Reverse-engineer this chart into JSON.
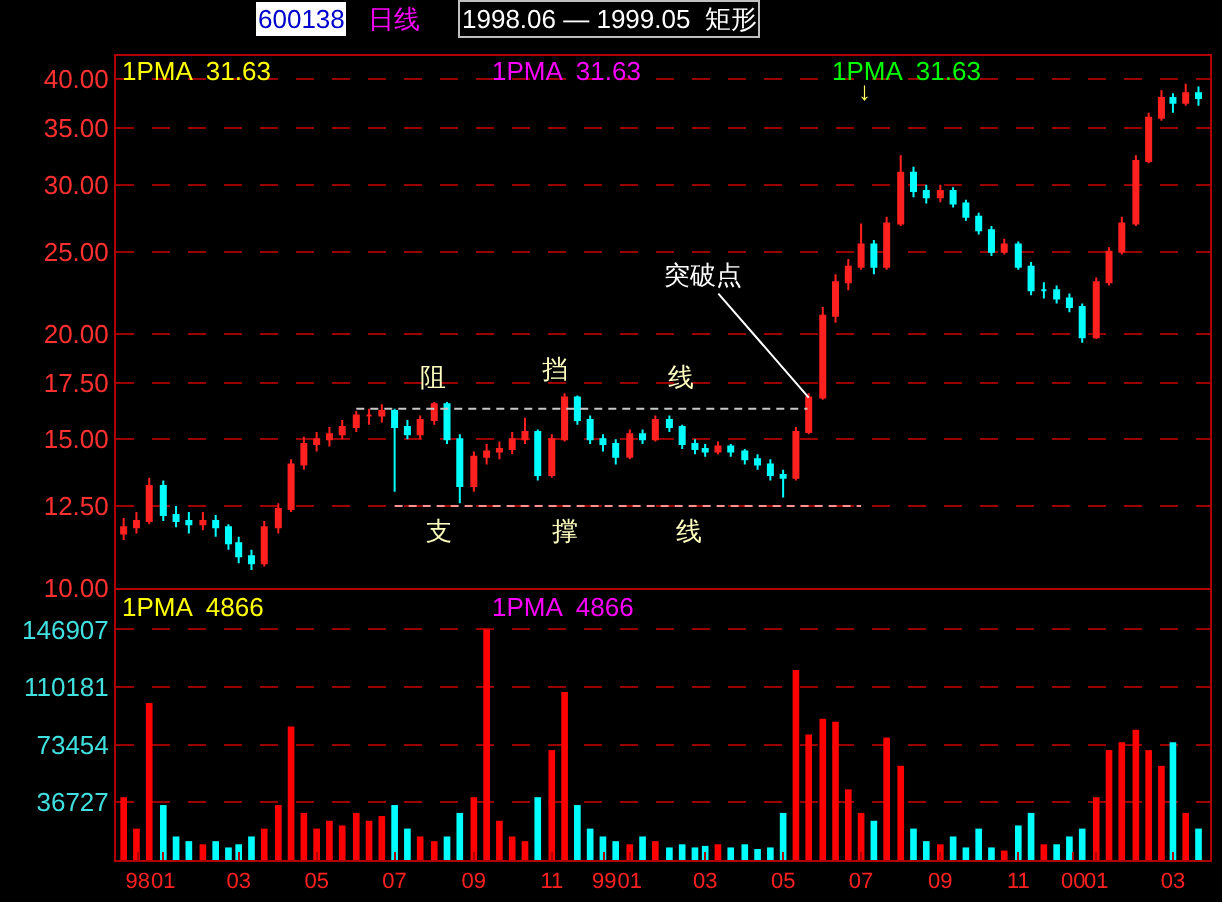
{
  "chart_data": [
    {
      "type": "candlestick",
      "log": true,
      "grid": "y",
      "tick_labels": "y",
      "x": [
        "1997-12-01",
        "1997-12-11",
        "1997-12-21",
        "1998-01-01",
        "1998-01-11",
        "1998-01-21",
        "1998-02-01",
        "1998-02-11",
        "1998-02-21",
        "1998-03-01",
        "1998-03-11",
        "1998-03-21",
        "1998-04-01",
        "1998-04-11",
        "1998-04-21",
        "1998-05-01",
        "1998-05-11",
        "1998-05-21",
        "1998-06-01",
        "1998-06-11",
        "1998-06-21",
        "1998-07-01",
        "1998-07-11",
        "1998-07-21",
        "1998-08-01",
        "1998-08-11",
        "1998-08-21",
        "1998-09-01",
        "1998-09-11",
        "1998-09-21",
        "1998-10-01",
        "1998-10-11",
        "1998-10-21",
        "1998-11-01",
        "1998-11-11",
        "1998-11-21",
        "1998-12-01",
        "1998-12-11",
        "1998-12-21",
        "1999-01-01",
        "1999-01-11",
        "1999-01-21",
        "1999-02-01",
        "1999-02-11",
        "1999-02-21",
        "1999-03-01",
        "1999-03-11",
        "1999-03-21",
        "1999-04-01",
        "1999-04-11",
        "1999-04-21",
        "1999-05-01",
        "1999-05-11",
        "1999-05-21",
        "1999-06-01",
        "1999-06-11",
        "1999-06-21",
        "1999-07-01",
        "1999-07-11",
        "1999-07-21",
        "1999-08-01",
        "1999-08-11",
        "1999-08-21",
        "1999-09-01",
        "1999-09-11",
        "1999-09-21",
        "1999-10-01",
        "1999-10-11",
        "1999-10-21",
        "1999-11-01",
        "1999-11-11",
        "1999-11-21",
        "1999-12-01",
        "1999-12-11",
        "1999-12-21",
        "2000-01-01",
        "2000-01-11",
        "2000-01-21",
        "2000-02-01",
        "2000-02-11",
        "2000-02-21",
        "2000-03-01",
        "2000-03-11",
        "2000-03-21"
      ],
      "ohlc": [
        [
          11.6,
          12.1,
          11.4,
          11.8
        ],
        [
          11.8,
          12.3,
          11.6,
          12.0
        ],
        [
          12.0,
          13.5,
          11.9,
          13.2
        ],
        [
          13.2,
          13.4,
          12.0,
          12.2
        ],
        [
          12.2,
          12.5,
          11.8,
          12.0
        ],
        [
          12.0,
          12.3,
          11.6,
          11.9
        ],
        [
          11.9,
          12.3,
          11.7,
          12.0
        ],
        [
          12.0,
          12.2,
          11.5,
          11.8
        ],
        [
          11.8,
          11.9,
          11.1,
          11.3
        ],
        [
          11.3,
          11.5,
          10.7,
          10.9
        ],
        [
          10.9,
          11.1,
          10.5,
          10.7
        ],
        [
          10.7,
          12.0,
          10.6,
          11.8
        ],
        [
          11.8,
          12.6,
          11.6,
          12.4
        ],
        [
          12.4,
          14.2,
          12.3,
          14.0
        ],
        [
          14.0,
          15.1,
          13.8,
          14.8
        ],
        [
          14.8,
          15.3,
          14.5,
          15.0
        ],
        [
          15.0,
          15.5,
          14.7,
          15.2
        ],
        [
          15.2,
          15.8,
          15.0,
          15.5
        ],
        [
          15.5,
          16.2,
          15.3,
          16.0
        ],
        [
          16.0,
          16.3,
          15.6,
          16.0
        ],
        [
          16.0,
          16.5,
          15.7,
          16.2
        ],
        [
          16.2,
          16.3,
          13.0,
          15.5
        ],
        [
          15.5,
          15.8,
          15.0,
          15.2
        ],
        [
          15.2,
          16.0,
          15.0,
          15.8
        ],
        [
          15.8,
          16.6,
          15.6,
          16.5
        ],
        [
          16.5,
          16.6,
          14.8,
          15.0
        ],
        [
          15.0,
          15.2,
          12.6,
          13.2
        ],
        [
          13.2,
          14.5,
          13.0,
          14.3
        ],
        [
          14.3,
          14.8,
          14.0,
          14.5
        ],
        [
          14.5,
          14.9,
          14.2,
          14.6
        ],
        [
          14.6,
          15.3,
          14.4,
          15.0
        ],
        [
          15.0,
          15.9,
          14.8,
          15.3
        ],
        [
          15.3,
          15.4,
          13.4,
          13.6
        ],
        [
          13.6,
          15.2,
          13.5,
          15.0
        ],
        [
          15.0,
          17.0,
          14.9,
          16.8
        ],
        [
          16.8,
          16.9,
          15.6,
          15.8
        ],
        [
          15.8,
          16.0,
          14.8,
          15.0
        ],
        [
          15.0,
          15.2,
          14.5,
          14.8
        ],
        [
          14.8,
          15.0,
          14.0,
          14.3
        ],
        [
          14.3,
          15.4,
          14.2,
          15.2
        ],
        [
          15.2,
          15.4,
          14.8,
          15.0
        ],
        [
          15.0,
          16.0,
          14.9,
          15.8
        ],
        [
          15.8,
          16.0,
          15.3,
          15.5
        ],
        [
          15.5,
          15.6,
          14.6,
          14.8
        ],
        [
          14.8,
          15.0,
          14.4,
          14.6
        ],
        [
          14.6,
          14.8,
          14.3,
          14.5
        ],
        [
          14.5,
          14.9,
          14.4,
          14.7
        ],
        [
          14.7,
          14.8,
          14.3,
          14.5
        ],
        [
          14.5,
          14.6,
          14.0,
          14.2
        ],
        [
          14.2,
          14.4,
          13.8,
          14.0
        ],
        [
          14.0,
          14.2,
          13.4,
          13.6
        ],
        [
          13.6,
          13.8,
          12.8,
          13.5
        ],
        [
          13.5,
          15.5,
          13.4,
          15.3
        ],
        [
          15.3,
          17.0,
          15.2,
          16.8
        ],
        [
          16.8,
          21.5,
          16.7,
          21.0
        ],
        [
          21.0,
          23.5,
          20.6,
          23.0
        ],
        [
          23.0,
          24.5,
          22.5,
          24.0
        ],
        [
          24.0,
          27.0,
          23.8,
          25.5
        ],
        [
          25.5,
          25.8,
          23.5,
          24.0
        ],
        [
          24.0,
          27.5,
          23.8,
          27.0
        ],
        [
          27.0,
          32.5,
          26.8,
          31.0
        ],
        [
          31.0,
          31.5,
          29.0,
          29.5
        ],
        [
          29.5,
          30.0,
          28.5,
          29.0
        ],
        [
          29.0,
          30.0,
          28.6,
          29.5
        ],
        [
          29.5,
          29.8,
          28.2,
          28.5
        ],
        [
          28.5,
          28.8,
          27.2,
          27.5
        ],
        [
          27.5,
          27.8,
          26.2,
          26.5
        ],
        [
          26.5,
          26.8,
          24.7,
          25.0
        ],
        [
          25.0,
          25.9,
          24.8,
          25.5
        ],
        [
          25.5,
          25.7,
          23.8,
          24.0
        ],
        [
          24.0,
          24.3,
          22.2,
          22.5
        ],
        [
          22.5,
          23.0,
          22.0,
          22.5
        ],
        [
          22.5,
          22.8,
          21.7,
          22.0
        ],
        [
          22.0,
          22.3,
          21.2,
          21.5
        ],
        [
          21.5,
          21.7,
          19.5,
          19.8
        ],
        [
          19.8,
          23.3,
          19.7,
          23.0
        ],
        [
          23.0,
          25.3,
          22.8,
          25.0
        ],
        [
          25.0,
          27.5,
          24.8,
          27.0
        ],
        [
          27.0,
          32.5,
          26.8,
          32.0
        ],
        [
          32.0,
          36.5,
          31.8,
          36.0
        ],
        [
          36.0,
          38.8,
          35.7,
          38.0
        ],
        [
          38.0,
          38.5,
          36.5,
          37.5
        ],
        [
          37.5,
          39.5,
          37.2,
          38.5
        ],
        [
          38.5,
          39.2,
          37.2,
          38.0
        ]
      ],
      "series": [
        {
          "type": "line",
          "x": [
            "1998-06-01",
            "1999-05-20"
          ],
          "values": [
            16.3,
            16.3
          ],
          "color": "#c8c8c8",
          "line_style": "dashed"
        },
        {
          "type": "line",
          "x": [
            "1998-07-01",
            "1999-07-01"
          ],
          "values": [
            12.5,
            12.5
          ],
          "color": "#ff9090",
          "line_style": "dashed"
        }
      ],
      "xlim": [
        "1997-11-25",
        "2000-03-30"
      ],
      "ylim": [
        10,
        42.6
      ],
      "yticks": [
        {
          "value": 10,
          "label": "10.00"
        },
        {
          "value": 12.5,
          "label": "12.50"
        },
        {
          "value": 15,
          "label": "15.00"
        },
        {
          "value": 17.5,
          "label": "17.50"
        },
        {
          "value": 20,
          "label": "20.00"
        },
        {
          "value": 25,
          "label": "25.00"
        },
        {
          "value": 30,
          "label": "30.00"
        },
        {
          "value": 35,
          "label": "35.00"
        },
        {
          "value": 40,
          "label": "40.00"
        }
      ],
      "annotations": [
        "600138",
        "日线",
        "1998.06 — 1999.05  矩形",
        "1PMA  31.63",
        "1PMA  31.63",
        "1PMA  31.63",
        "阻",
        "挡",
        "线",
        "支",
        "撑",
        "线",
        "↓",
        {
          "text": "突破点",
          "x": "1999-05-21",
          "y": 16.8
        }
      ]
    },
    {
      "type": "bar",
      "grid": "y",
      "x": [
        "1997-12-01",
        "1997-12-11",
        "1997-12-21",
        "1998-01-01",
        "1998-01-11",
        "1998-01-21",
        "1998-02-01",
        "1998-02-11",
        "1998-02-21",
        "1998-03-01",
        "1998-03-11",
        "1998-03-21",
        "1998-04-01",
        "1998-04-11",
        "1998-04-21",
        "1998-05-01",
        "1998-05-11",
        "1998-05-21",
        "1998-06-01",
        "1998-06-11",
        "1998-06-21",
        "1998-07-01",
        "1998-07-11",
        "1998-07-21",
        "1998-08-01",
        "1998-08-11",
        "1998-08-21",
        "1998-09-01",
        "1998-09-11",
        "1998-09-21",
        "1998-10-01",
        "1998-10-11",
        "1998-10-21",
        "1998-11-01",
        "1998-11-11",
        "1998-11-21",
        "1998-12-01",
        "1998-12-11",
        "1998-12-21",
        "1999-01-01",
        "1999-01-11",
        "1999-01-21",
        "1999-02-01",
        "1999-02-11",
        "1999-02-21",
        "1999-03-01",
        "1999-03-11",
        "1999-03-21",
        "1999-04-01",
        "1999-04-11",
        "1999-04-21",
        "1999-05-01",
        "1999-05-11",
        "1999-05-21",
        "1999-06-01",
        "1999-06-11",
        "1999-06-21",
        "1999-07-01",
        "1999-07-11",
        "1999-07-21",
        "1999-08-01",
        "1999-08-11",
        "1999-08-21",
        "1999-09-01",
        "1999-09-11",
        "1999-09-21",
        "1999-10-01",
        "1999-10-11",
        "1999-10-21",
        "1999-11-01",
        "1999-11-11",
        "1999-11-21",
        "1999-12-01",
        "1999-12-11",
        "1999-12-21",
        "2000-01-01",
        "2000-01-11",
        "2000-01-21",
        "2000-02-01",
        "2000-02-11",
        "2000-02-21",
        "2000-03-01",
        "2000-03-11",
        "2000-03-21"
      ],
      "values": [
        40000,
        20000,
        100000,
        35000,
        15000,
        12000,
        10000,
        12000,
        8000,
        10000,
        15000,
        20000,
        35000,
        85000,
        30000,
        20000,
        25000,
        22000,
        30000,
        25000,
        28000,
        35000,
        20000,
        15000,
        12000,
        15000,
        30000,
        40000,
        147000,
        25000,
        15000,
        12000,
        40000,
        70000,
        107000,
        35000,
        20000,
        15000,
        12000,
        10000,
        15000,
        12000,
        8000,
        10000,
        8000,
        9000,
        10000,
        8000,
        10000,
        7000,
        8000,
        30000,
        121000,
        80000,
        90000,
        88000,
        45000,
        30000,
        25000,
        78000,
        60000,
        20000,
        12000,
        10000,
        15000,
        8000,
        20000,
        8000,
        6000,
        22000,
        30000,
        10000,
        10000,
        15000,
        20000,
        40000,
        70000,
        75000,
        83000,
        70000,
        60000,
        75000,
        30000,
        20000
      ],
      "colors": [
        "#ff0000",
        "#ff0000",
        "#ff0000",
        "#00ffff",
        "#00ffff",
        "#00ffff",
        "#ff0000",
        "#00ffff",
        "#00ffff",
        "#00ffff",
        "#00ffff",
        "#ff0000",
        "#ff0000",
        "#ff0000",
        "#ff0000",
        "#ff0000",
        "#ff0000",
        "#ff0000",
        "#ff0000",
        "#ff0000",
        "#ff0000",
        "#00ffff",
        "#00ffff",
        "#ff0000",
        "#ff0000",
        "#00ffff",
        "#00ffff",
        "#ff0000",
        "#ff0000",
        "#ff0000",
        "#ff0000",
        "#ff0000",
        "#00ffff",
        "#ff0000",
        "#ff0000",
        "#00ffff",
        "#00ffff",
        "#00ffff",
        "#00ffff",
        "#ff0000",
        "#00ffff",
        "#ff0000",
        "#00ffff",
        "#00ffff",
        "#00ffff",
        "#00ffff",
        "#ff0000",
        "#00ffff",
        "#00ffff",
        "#00ffff",
        "#00ffff",
        "#00ffff",
        "#ff0000",
        "#ff0000",
        "#ff0000",
        "#ff0000",
        "#ff0000",
        "#ff0000",
        "#00ffff",
        "#ff0000",
        "#ff0000",
        "#00ffff",
        "#00ffff",
        "#ff0000",
        "#00ffff",
        "#00ffff",
        "#00ffff",
        "#00ffff",
        "#ff0000",
        "#00ffff",
        "#00ffff",
        "#ff0000",
        "#00ffff",
        "#00ffff",
        "#00ffff",
        "#ff0000",
        "#ff0000",
        "#ff0000",
        "#ff0000",
        "#ff0000",
        "#ff0000",
        "#00ffff",
        "#ff0000",
        "#00ffff"
      ],
      "xlim": [
        "1997-11-25",
        "2000-03-30"
      ],
      "xticks": [
        {
          "value": "1997-12-12",
          "label": "98"
        },
        {
          "value": "1998-01-01",
          "label": "01"
        },
        {
          "value": "1998-03-01",
          "label": "03"
        },
        {
          "value": "1998-05-01",
          "label": "05"
        },
        {
          "value": "1998-07-01",
          "label": "07"
        },
        {
          "value": "1998-09-01",
          "label": "09"
        },
        {
          "value": "1998-11-01",
          "label": "11"
        },
        {
          "value": "1998-12-12",
          "label": "99"
        },
        {
          "value": "1999-01-01",
          "label": "01"
        },
        {
          "value": "1999-03-01",
          "label": "03"
        },
        {
          "value": "1999-05-01",
          "label": "05"
        },
        {
          "value": "1999-07-01",
          "label": "07"
        },
        {
          "value": "1999-09-01",
          "label": "09"
        },
        {
          "value": "1999-11-01",
          "label": "11"
        },
        {
          "value": "1999-12-14",
          "label": "00"
        },
        {
          "value": "2000-01-01",
          "label": "01"
        },
        {
          "value": "2000-03-01",
          "label": "03"
        }
      ],
      "ylim": [
        0,
        172000
      ],
      "yticks": [
        36727,
        73454,
        110181,
        146907
      ],
      "annotations": [
        "1PMA  4866",
        "1PMA  4866"
      ]
    }
  ]
}
